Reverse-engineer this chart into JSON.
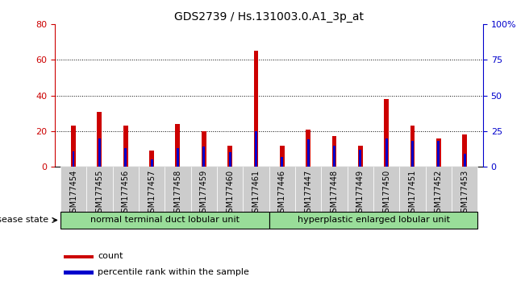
{
  "title": "GDS2739 / Hs.131003.0.A1_3p_at",
  "categories": [
    "GSM177454",
    "GSM177455",
    "GSM177456",
    "GSM177457",
    "GSM177458",
    "GSM177459",
    "GSM177460",
    "GSM177461",
    "GSM177446",
    "GSM177447",
    "GSM177448",
    "GSM177449",
    "GSM177450",
    "GSM177451",
    "GSM177452",
    "GSM177453"
  ],
  "count_values": [
    23,
    31,
    23,
    9,
    24,
    20,
    12,
    65,
    12,
    21,
    17,
    12,
    38,
    23,
    16,
    18
  ],
  "percentile_values": [
    11,
    20,
    13,
    5,
    13,
    14,
    10,
    25,
    7,
    19,
    15,
    12,
    20,
    18,
    18,
    9
  ],
  "group1_label": "normal terminal duct lobular unit",
  "group2_label": "hyperplastic enlarged lobular unit",
  "group1_indices": [
    0,
    7
  ],
  "group2_indices": [
    8,
    15
  ],
  "disease_state_label": "disease state",
  "left_ylim": [
    0,
    80
  ],
  "right_ylim": [
    0,
    100
  ],
  "left_yticks": [
    0,
    20,
    40,
    60,
    80
  ],
  "right_yticks": [
    0,
    25,
    50,
    75,
    100
  ],
  "right_yticklabels": [
    "0",
    "25",
    "50",
    "75",
    "100%"
  ],
  "count_color": "#cc0000",
  "percentile_color": "#0000cc",
  "count_bar_width": 0.18,
  "pct_bar_width": 0.09,
  "group_bg_color": "#99dd99",
  "tick_bg_color": "#cccccc",
  "legend_count": "count",
  "legend_percentile": "percentile rank within the sample",
  "fig_bg": "#ffffff",
  "grid_dotted_color": "#000000",
  "title_fontsize": 10,
  "tick_fontsize": 7
}
